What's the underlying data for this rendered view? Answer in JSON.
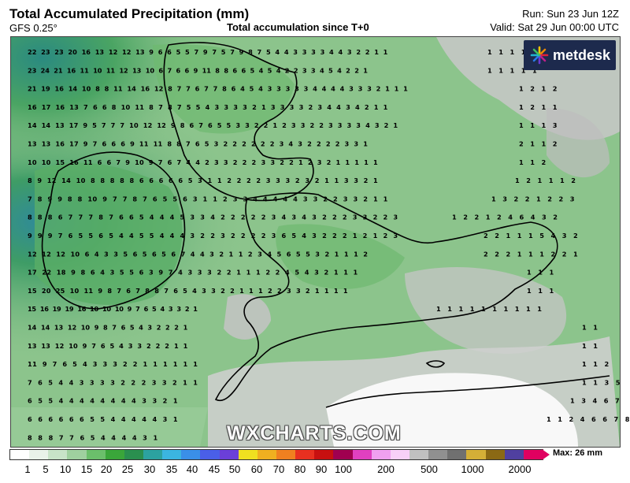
{
  "header": {
    "title": "Total Accumulated Precipitation (mm)",
    "model": "GFS 0.25°",
    "subtitle": "Total accumulation since T+0",
    "run": "Run: Sun 23 Jun 12Z",
    "valid": "Valid: Sat 29 Jun 00:00 UTC"
  },
  "logo": {
    "text": "metdesk"
  },
  "watermark": "WXCHARTS.COM",
  "legend": {
    "max_label": "Max: 26 mm",
    "ticks": [
      "1",
      "5",
      "10",
      "15",
      "20",
      "25",
      "30",
      "35",
      "40",
      "45",
      "50",
      "60",
      "70",
      "80",
      "90",
      "100",
      "200",
      "500",
      "1000",
      "2000"
    ],
    "colors": [
      "#ffffff",
      "#e9f2e9",
      "#c8e3c8",
      "#9fd09f",
      "#6bbf6b",
      "#3aa63a",
      "#2a8f4f",
      "#2ca2a0",
      "#3bb5e0",
      "#3a8fe8",
      "#4a5fe8",
      "#6b3fd8",
      "#f0e020",
      "#f0b020",
      "#f08020",
      "#e83020",
      "#c81010",
      "#a00050",
      "#e040c0",
      "#f0a0f0",
      "#f8d0f8",
      "#c0c0c0",
      "#909090",
      "#707070",
      "#d4af37",
      "#8b6914",
      "#5040a0",
      "#e00060"
    ]
  },
  "map": {
    "colors": {
      "sea_low": "#6aab72",
      "land_green": "#8cc48c",
      "rain_high": "#3d9c5a",
      "dry_gray": "#c8c8c8",
      "dry_white": "#f4f4f4",
      "coast": "#000000"
    },
    "rows": [
      "22 23 23 20 16 13 12 12 13 9 6 6 5 5 7 9 7 5 7 9 8 7 5 4 4 3 3 3 3 4 4 3 2 2 1 1",
      "23 24 21 16 11 10 11 12 13 10 6 7 6 6 9 11 8 8 6 6 5 4 5 4 2 2 3 3 4 5 4 2 2 1",
      "21 19 16 14 10 8 8 11 14 16 12 8 7 7 6 7 7 8 6 4 5 4 3 3 3 3 3 4 4 4 4 3 3 3 2 1 1 1",
      "16 17 16 13 7 6 6 8 10 11 8 7 8 7 5 5 4 3 3 3 3 2 1 3 3 3 3 2 3 4 4 3 4 2 1 1",
      "14 14 13 17 9 5 7 7 7 10 12 12 9 8 6 7 6 5 5 3 3 2 2 1 2 3 3 2 2 3 3 3 3 4 3 2 1",
      "13 13 16 17 9 7 6 6 6 9 11 11 8 8 7 6 5 3 2 2 2 2 2 2 3 4 3 2 2 2 2 3 3 1",
      "10 10 15 16 11 6 6 7 9 10 9 7 6 7 4 4 2 3 3 2 2 2 3 3 2 2 1 2 3 2 1 1 1 1 1",
      "8 9 12 14 10 8 8 8 8 8 6 6 6 6 6 5 3 1 1 2 2 2 2 3 3 3 2 3 2 1 1 3 3 2 1",
      "7 8 9 9 8 8 10 9 7 7 8 7 6 5 5 6 3 1 1 2 3 3 4 4 4 4 4 3 3 2 2 3 3 2 1 1",
      "8 8 8 6 7 7 7 8 7 6 6 5 4 4 4 5 3 3 4 2 2 2 2 2 3 4 3 4 3 2 2 2 3 3 2 2 3",
      "9 9 9 7 6 5 5 6 5 4 4 5 5 4 4 4 3 2 2 3 2 2 2 2 3 6 5 4 3 2 2 2 1 2 1 2 3",
      "12 12 12 10 6 4 3 3 5 6 5 6 5 6 7 4 4 3 2 1 1 2 3 4 5 6 5 5 3 2 1 1 1 2",
      "17 22 18 9 8 6 4 3 5 5 6 3 9 7 4 3 3 3 2 2 1 1 1 2 2 4 5 4 3 2 1 1 1",
      "15 20 25 10 11 9 8 7 6 7 8 8 7 6 5 4 3 3 2 2 1 1 1 2 2 3 3 2 1 1 1 1",
      "15 16 19 19 16 10 10 10 9 7 6 5 4 3 3 2 1",
      "14 14 13 12 10 9 8 7 6 5 4 3 2 2 2 1",
      "13 13 12 10 9 7 6 5 4 3 3 2 2 2 1 1",
      "11 9 7 6 5 4 3 3 3 2 2 1 1 1 1 1 1",
      "7 6 5 4 4 3 3 3 3 2 2 2 3 3 2 1 1",
      "6 5 5 4 4 4 4 4 4 4 4 3 3 2 1",
      "6 6 6 6 6 6 5 5 4 4 4 4 4 3 1",
      "8 8 8 7 7 6 5 4 4 4 4 3 1"
    ],
    "east_rows": [
      "1 1 1 1",
      "1 1 1 1 1",
      "1 2 1 2",
      "1 2 1 1",
      "1 1 1 3",
      "2 1 1 2",
      "1 1 2",
      "1 2 1 1 1 2",
      "1 3 2 2 1 2 2 3",
      "1 2 2 1 2 4 6 4 3 2",
      "2 2 1 1 1 5 4 3 2",
      "2 2 2 1 1 1 2 2 1",
      "1 1 1",
      "1 1 1",
      "1 1 1 1 1 1 1 1 1 1",
      "1 1",
      "1 1",
      "1 1 2",
      "1 1 3 5",
      "1 3 4 6 7",
      "1 1 2 4 6 6 7 8"
    ]
  }
}
